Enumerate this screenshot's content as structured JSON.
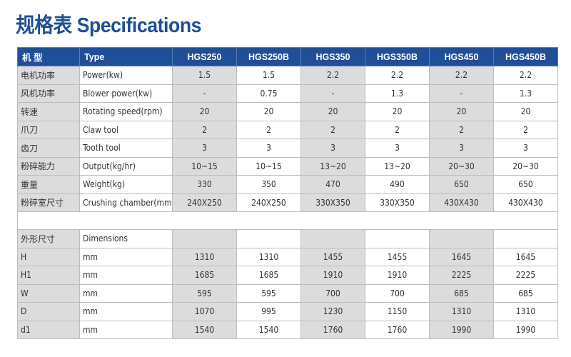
{
  "title": "规格表 Specifications",
  "header": {
    "cn": "机  型",
    "en": "Type",
    "models": [
      "HGS250",
      "HGS250B",
      "HGS350",
      "HGS350B",
      "HGS450",
      "HGS450B"
    ]
  },
  "rows": [
    {
      "cn": "电机功率",
      "en": "Power(kw)",
      "values": [
        "1.5",
        "1.5",
        "2.2",
        "2.2",
        "2.2",
        "2.2"
      ]
    },
    {
      "cn": "风机功率",
      "en": "Blower power(kw)",
      "values": [
        "-",
        "0.75",
        "-",
        "1.3",
        "-",
        "1.3"
      ]
    },
    {
      "cn": "转速",
      "en": "Rotating speed(rpm)",
      "values": [
        "20",
        "20",
        "20",
        "20",
        "20",
        "20"
      ]
    },
    {
      "cn": "爪刀",
      "en": "Claw tool",
      "values": [
        "2",
        "2",
        "2",
        "2",
        "2",
        "2"
      ]
    },
    {
      "cn": "齿刀",
      "en": "Tooth tool",
      "values": [
        "3",
        "3",
        "3",
        "3",
        "3",
        "3"
      ]
    },
    {
      "cn": "粉碎能力",
      "en": "Output(kg/hr)",
      "values": [
        "10~15",
        "10~15",
        "13~20",
        "13~20",
        "20~30",
        "20~30"
      ]
    },
    {
      "cn": "重量",
      "en": "Weight(kg)",
      "values": [
        "330",
        "350",
        "470",
        "490",
        "650",
        "650"
      ]
    },
    {
      "cn": "粉碎室尺寸",
      "en": "Crushing chamber(mm)",
      "values": [
        "240X250",
        "240X250",
        "330X350",
        "330X350",
        "430X430",
        "430X430"
      ]
    }
  ],
  "dimensions": [
    {
      "cn": "外形尺寸",
      "en": "Dimensions",
      "values": [
        "",
        "",
        "",
        "",
        "",
        ""
      ]
    },
    {
      "cn": "H",
      "en": "mm",
      "values": [
        "1310",
        "1310",
        "1455",
        "1455",
        "1645",
        "1645"
      ]
    },
    {
      "cn": "H1",
      "en": "mm",
      "values": [
        "1685",
        "1685",
        "1910",
        "1910",
        "2225",
        "2225"
      ]
    },
    {
      "cn": "W",
      "en": "mm",
      "values": [
        "595",
        "595",
        "700",
        "700",
        "685",
        "685"
      ]
    },
    {
      "cn": "D",
      "en": "mm",
      "values": [
        "1070",
        "995",
        "1230",
        "1150",
        "1310",
        "1310"
      ]
    },
    {
      "cn": "d1",
      "en": "mm",
      "values": [
        "1540",
        "1540",
        "1760",
        "1760",
        "1990",
        "1990"
      ]
    }
  ]
}
